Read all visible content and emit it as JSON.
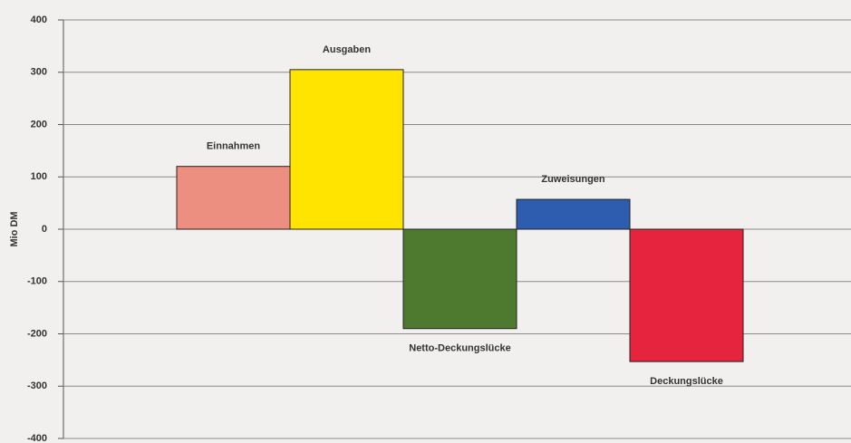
{
  "chart_data": {
    "type": "bar",
    "ylabel": "Mio DM",
    "categories": [
      "Einnahmen",
      "Ausgaben",
      "Netto-Deckungslücke",
      "Zuweisungen",
      "Deckungslücke"
    ],
    "values": [
      120,
      305,
      -190,
      57,
      -253
    ],
    "colors": [
      "#ec8e80",
      "#ffe400",
      "#4e7a30",
      "#2e5db0",
      "#e6243e"
    ],
    "ylim": [
      -400,
      400
    ],
    "yticks": [
      -400,
      -300,
      -200,
      -100,
      0,
      100,
      200,
      300,
      400
    ],
    "grid": true
  }
}
